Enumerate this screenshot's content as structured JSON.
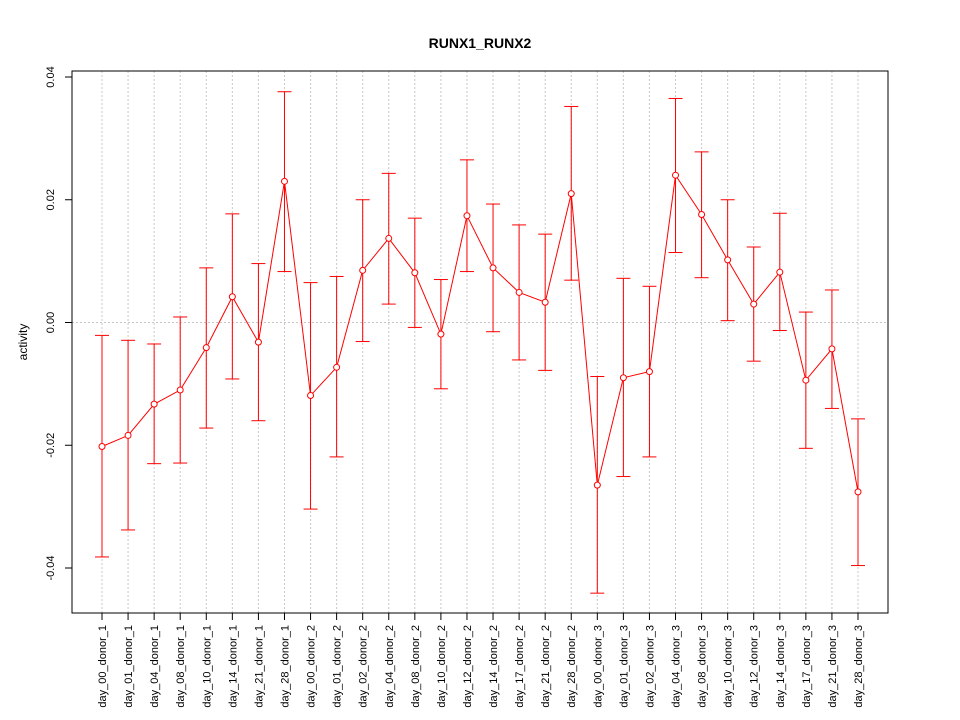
{
  "chart_data": {
    "type": "line",
    "title": "RUNX1_RUNX2",
    "xlabel": "",
    "ylabel": "activity",
    "ylim": [
      -0.047,
      0.041
    ],
    "yticks": [
      -0.04,
      -0.02,
      0.0,
      0.02,
      0.04
    ],
    "ytick_labels": [
      "-0.04",
      "-0.02",
      "0.00",
      "0.02",
      "0.04"
    ],
    "grid": true,
    "line_color": "#ff0000",
    "grid_color": "#c8c8c8",
    "categories": [
      "day_00_donor_1",
      "day_01_donor_1",
      "day_04_donor_1",
      "day_08_donor_1",
      "day_10_donor_1",
      "day_14_donor_1",
      "day_21_donor_1",
      "day_28_donor_1",
      "day_00_donor_2",
      "day_01_donor_2",
      "day_02_donor_2",
      "day_04_donor_2",
      "day_08_donor_2",
      "day_10_donor_2",
      "day_12_donor_2",
      "day_14_donor_2",
      "day_17_donor_2",
      "day_21_donor_2",
      "day_28_donor_2",
      "day_00_donor_3",
      "day_01_donor_3",
      "day_02_donor_3",
      "day_04_donor_3",
      "day_08_donor_3",
      "day_10_donor_3",
      "day_12_donor_3",
      "day_14_donor_3",
      "day_17_donor_3",
      "day_21_donor_3",
      "day_28_donor_3"
    ],
    "series": [
      {
        "values": [
          -0.0202,
          -0.0184,
          -0.0133,
          -0.011,
          -0.0041,
          0.0042,
          -0.0032,
          0.023,
          -0.0119,
          -0.0073,
          0.0085,
          0.0137,
          0.0081,
          -0.0019,
          0.0174,
          0.0089,
          0.0049,
          0.0033,
          0.021,
          -0.0265,
          -0.009,
          -0.008,
          0.024,
          0.0176,
          0.0102,
          0.003,
          0.0082,
          -0.0094,
          -0.0043,
          -0.0276
        ],
        "upper": [
          -0.0021,
          -0.0029,
          -0.0035,
          0.0009,
          0.0089,
          0.0177,
          0.0096,
          0.0376,
          0.0065,
          0.0075,
          0.02,
          0.0243,
          0.017,
          0.007,
          0.0265,
          0.0193,
          0.0159,
          0.0144,
          0.0352,
          -0.0088,
          0.0072,
          0.0059,
          0.0365,
          0.0278,
          0.02,
          0.0123,
          0.0178,
          0.0017,
          0.0053,
          -0.0157
        ],
        "lower": [
          -0.0382,
          -0.0338,
          -0.023,
          -0.0229,
          -0.0172,
          -0.0092,
          -0.016,
          0.0083,
          -0.0304,
          -0.0219,
          -0.0031,
          0.003,
          -0.0008,
          -0.0108,
          0.0083,
          -0.0015,
          -0.0061,
          -0.0078,
          0.0069,
          -0.0441,
          -0.0251,
          -0.0219,
          0.0114,
          0.0073,
          0.0003,
          -0.0063,
          -0.0013,
          -0.0205,
          -0.014,
          -0.0396
        ]
      }
    ]
  }
}
